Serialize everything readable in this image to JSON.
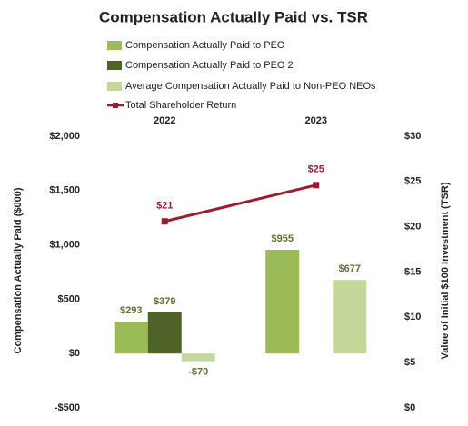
{
  "chart_data": {
    "type": "bar",
    "title": "Compensation Actually Paid vs. TSR",
    "categories": [
      "2022",
      "2023"
    ],
    "ylabel": "Compensation Actually Paid ($000)",
    "y2label": "Value of Initial $100 Investment (TSR)",
    "ylim": [
      -500,
      2000
    ],
    "yticks": [
      {
        "value": -500,
        "label": "-$500"
      },
      {
        "value": 0,
        "label": "$0"
      },
      {
        "value": 500,
        "label": "$500"
      },
      {
        "value": 1000,
        "label": "$1,000"
      },
      {
        "value": 1500,
        "label": "$1,500"
      },
      {
        "value": 2000,
        "label": "$2,000"
      }
    ],
    "y2lim": [
      0,
      30
    ],
    "y2ticks": [
      {
        "value": 0,
        "label": "$0"
      },
      {
        "value": 5,
        "label": "$5"
      },
      {
        "value": 10,
        "label": "$10"
      },
      {
        "value": 15,
        "label": "$15"
      },
      {
        "value": 20,
        "label": "$20"
      },
      {
        "value": 25,
        "label": "$25"
      },
      {
        "value": 30,
        "label": "$30"
      }
    ],
    "series": [
      {
        "name": "Compensation Actually Paid to PEO",
        "color": "#9bbb59",
        "values": [
          293,
          955
        ],
        "value_labels": [
          "$293",
          "$955"
        ]
      },
      {
        "name": "Compensation Actually Paid to PEO 2",
        "color": "#4f6228",
        "values": [
          379,
          null
        ],
        "value_labels": [
          "$379",
          null
        ]
      },
      {
        "name": "Average Compensation Actually Paid to Non-PEO NEOs",
        "color": "#c4d79b",
        "values": [
          -70,
          677
        ],
        "value_labels": [
          "-$70",
          "$677"
        ]
      },
      {
        "name": "Total Shareholder Return",
        "color": "#9b1b30",
        "type": "line",
        "axis": "y2",
        "values": [
          20.6,
          24.6
        ],
        "value_labels": [
          "$21",
          "$25"
        ]
      }
    ]
  }
}
